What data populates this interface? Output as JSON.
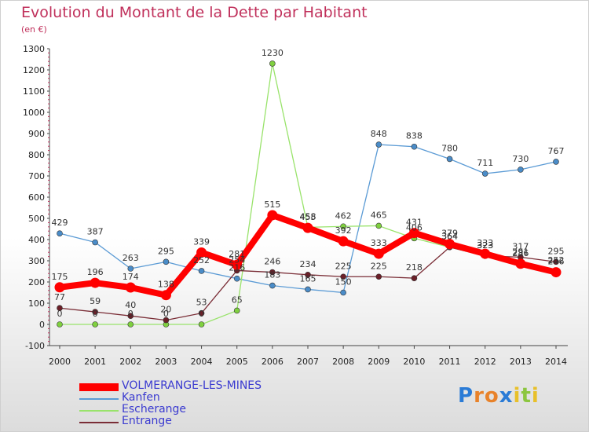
{
  "chart_data": {
    "type": "line",
    "title": "Evolution du Montant de la Dette par Habitant",
    "subtitle": "(en €)",
    "xlabel": "",
    "ylabel": "",
    "x": [
      "2000",
      "2001",
      "2002",
      "2003",
      "2004",
      "2005",
      "2006",
      "2007",
      "2008",
      "2009",
      "2010",
      "2011",
      "2012",
      "2013",
      "2014"
    ],
    "ylim": [
      -100,
      1300
    ],
    "yticks": [
      "-100",
      "0",
      "100",
      "200",
      "300",
      "400",
      "500",
      "600",
      "700",
      "800",
      "900",
      "1000",
      "1100",
      "1200",
      "1300"
    ],
    "grid": false,
    "legend_position": "bottom-left",
    "series": [
      {
        "name": "VOLMERANGE-LES-MINES",
        "color": "#ff0000",
        "point_color": "#ff0000",
        "values": [
          175,
          196,
          174,
          138,
          339,
          281,
          515,
          455,
          392,
          333,
          431,
          379,
          333,
          286,
          246
        ],
        "labels": [
          "175",
          "196",
          "174",
          "138",
          "339",
          "281",
          "515",
          "455",
          "392",
          "333",
          "431",
          "379",
          "333",
          "286",
          "246"
        ]
      },
      {
        "name": "Kanfen",
        "color": "#5b9bd5",
        "point_color": "#4a8cc8",
        "values": [
          429,
          387,
          263,
          295,
          252,
          216,
          183,
          165,
          150,
          848,
          838,
          780,
          711,
          730,
          767
        ],
        "labels": [
          "429",
          "387",
          "263",
          "295",
          "252",
          "216",
          "183",
          "165",
          "150",
          "848",
          "838",
          "780",
          "711",
          "730",
          "767"
        ]
      },
      {
        "name": "Escherange",
        "color": "#99e36b",
        "point_color": "#7fd03f",
        "values": [
          0,
          0,
          0,
          0,
          0,
          65,
          1230,
          458,
          462,
          465,
          406,
          364,
          323,
          291,
          252
        ],
        "labels": [
          "0",
          "0",
          "0",
          "0",
          "0",
          "65",
          "1230",
          "458",
          "462",
          "465",
          "406",
          "364",
          "323",
          "291",
          "252"
        ]
      },
      {
        "name": "Entrange",
        "color": "#7a2d36",
        "point_color": "#6b1f28",
        "values": [
          77,
          59,
          40,
          20,
          53,
          254,
          246,
          234,
          225,
          225,
          218,
          364,
          323,
          317,
          295
        ],
        "labels": [
          "77",
          "59",
          "40",
          "20",
          "53",
          "254",
          "246",
          "234",
          "225",
          "225",
          "218",
          "364",
          "323",
          "317",
          "295"
        ]
      }
    ]
  },
  "logo": {
    "letters": [
      "P",
      "r",
      "o",
      "x",
      "i",
      "t",
      "i"
    ],
    "colors": [
      "#2a7bd6",
      "#e8822a",
      "#e8822a",
      "#2a7bd6",
      "#e8c02a",
      "#8cc63f",
      "#e8c02a"
    ]
  }
}
